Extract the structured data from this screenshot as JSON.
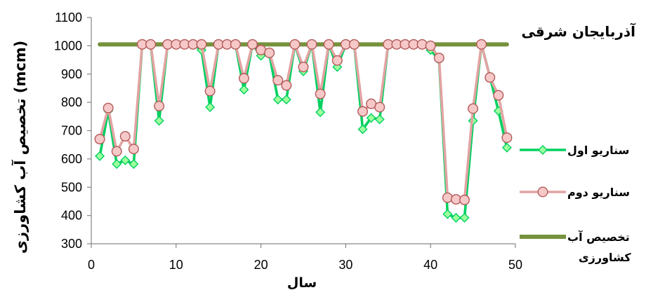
{
  "chart_data": {
    "type": "line",
    "title": "آذربایجان شرقی",
    "xlabel": "سال",
    "ylabel": "تخصیص آب کشاورزی (mcm)",
    "xlim": [
      0,
      50
    ],
    "ylim": [
      300,
      1100
    ],
    "x_ticks": [
      "0",
      "10",
      "20",
      "30",
      "40",
      "50"
    ],
    "y_ticks": [
      "300",
      "400",
      "500",
      "600",
      "700",
      "800",
      "900",
      "1000",
      "1100"
    ],
    "legend_position": "right",
    "x": [
      1,
      2,
      3,
      4,
      5,
      6,
      7,
      8,
      9,
      10,
      11,
      12,
      13,
      14,
      15,
      16,
      17,
      18,
      19,
      20,
      21,
      22,
      23,
      24,
      25,
      26,
      27,
      28,
      29,
      30,
      31,
      32,
      33,
      34,
      35,
      36,
      37,
      38,
      39,
      40,
      41,
      42,
      43,
      44,
      45,
      46,
      47,
      48,
      49
    ],
    "series": [
      {
        "name": "سناریو اول",
        "color": "#00d060",
        "marker": "diamond",
        "marker_fill": "#9dff9d",
        "values": [
          610,
          770,
          582,
          595,
          582,
          1005,
          1005,
          735,
          1005,
          1005,
          1005,
          1005,
          985,
          783,
          1005,
          1005,
          1005,
          845,
          1005,
          965,
          970,
          810,
          810,
          1005,
          910,
          1005,
          765,
          1005,
          925,
          1005,
          1005,
          705,
          745,
          740,
          1005,
          1005,
          1005,
          1005,
          1005,
          985,
          950,
          405,
          392,
          392,
          735,
          1005,
          890,
          770,
          640
        ]
      },
      {
        "name": "سناریو دوم",
        "color": "#e3a3a3",
        "marker": "circle",
        "marker_fill": "#f6c8c8",
        "values": [
          670,
          780,
          627,
          680,
          635,
          1005,
          1005,
          787,
          1005,
          1005,
          1005,
          1005,
          1005,
          840,
          1005,
          1005,
          1005,
          885,
          1005,
          985,
          975,
          878,
          860,
          1005,
          925,
          1005,
          830,
          1005,
          948,
          1005,
          1005,
          768,
          795,
          783,
          1005,
          1005,
          1005,
          1005,
          1005,
          1000,
          957,
          463,
          457,
          455,
          778,
          1005,
          888,
          825,
          675
        ]
      },
      {
        "name": "تخصیص آب کشاورزی",
        "legend_lines": [
          "تخصیص آب",
          "کشاورزی"
        ],
        "color": "#76923c",
        "marker": "none",
        "values": [
          1005,
          1005,
          1005,
          1005,
          1005,
          1005,
          1005,
          1005,
          1005,
          1005,
          1005,
          1005,
          1005,
          1005,
          1005,
          1005,
          1005,
          1005,
          1005,
          1005,
          1005,
          1005,
          1005,
          1005,
          1005,
          1005,
          1005,
          1005,
          1005,
          1005,
          1005,
          1005,
          1005,
          1005,
          1005,
          1005,
          1005,
          1005,
          1005,
          1005,
          1005,
          1005,
          1005,
          1005,
          1005,
          1005,
          1005,
          1005,
          1005
        ]
      }
    ]
  }
}
